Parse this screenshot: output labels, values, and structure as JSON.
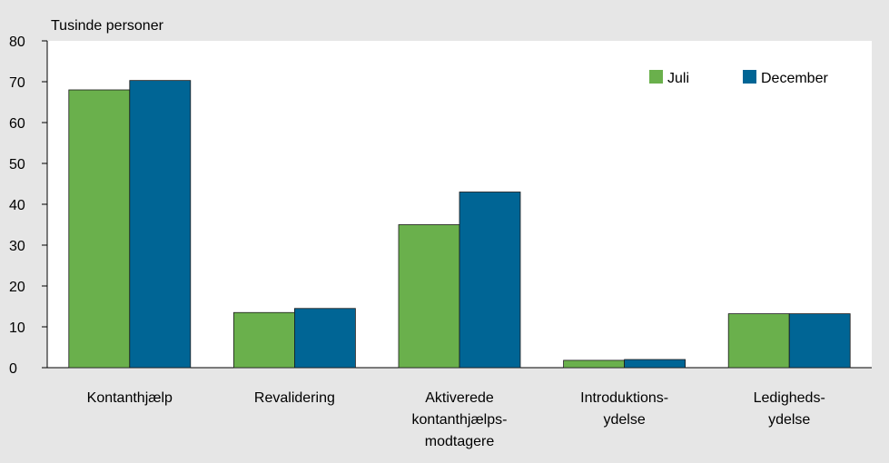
{
  "chart_data": {
    "type": "bar",
    "unit_label": "Tusinde personer",
    "categories": [
      [
        "Kontanthjælp"
      ],
      [
        "Revalidering"
      ],
      [
        "Aktiverede",
        "kontanthjælps-",
        "modtagere"
      ],
      [
        "Introduktions-",
        "ydelse"
      ],
      [
        "Ledigheds-",
        "ydelse"
      ]
    ],
    "series": [
      {
        "name": "Juli",
        "color": "#6ab04c",
        "values": [
          68,
          13.5,
          35,
          1.8,
          13.2
        ]
      },
      {
        "name": "December",
        "color": "#006595",
        "values": [
          70.3,
          14.5,
          43,
          2,
          13.2
        ]
      }
    ],
    "ylim": [
      0,
      80
    ],
    "yticks": [
      "0",
      "10",
      "20",
      "30",
      "40",
      "50",
      "60",
      "70",
      "80"
    ],
    "grid": false,
    "legend_position": "top-right",
    "background_color": "#e6e6e6",
    "plot_background_color": "#ffffff"
  }
}
